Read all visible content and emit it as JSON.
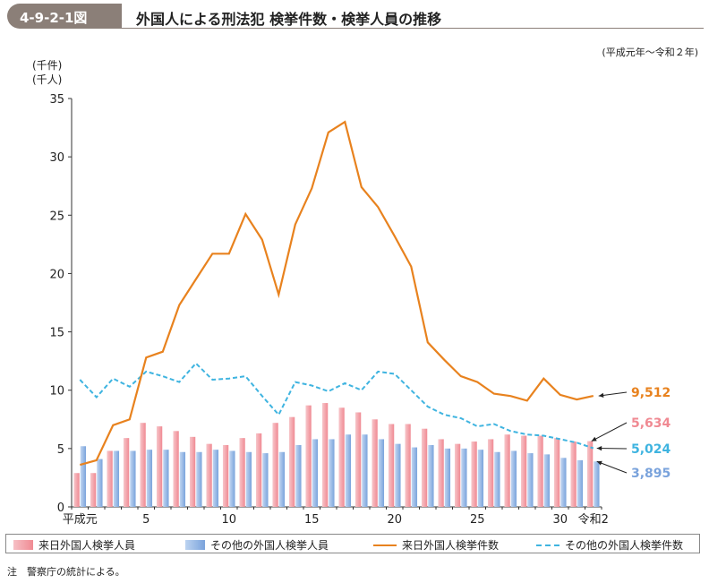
{
  "header": {
    "figure_no": "4-9-2-1図",
    "title": "外国人による刑法犯 検挙件数・検挙人員の推移",
    "period": "(平成元年～令和２年)"
  },
  "units": {
    "line1": "(千件)",
    "line2": "(千人)"
  },
  "note": "注　警察庁の統計による。",
  "colors": {
    "visitor_persons": "#f08a93",
    "other_persons": "#7aa3dc",
    "visitor_cases": "#e8821e",
    "other_cases": "#3fb4e0"
  },
  "chart_data": {
    "type": "bar",
    "title": "外国人による刑法犯 検挙件数・検挙人員の推移",
    "ylim": [
      0,
      35
    ],
    "yticks": [
      0,
      5,
      10,
      15,
      20,
      25,
      30,
      35
    ],
    "xtick_labels": [
      {
        "index": 0,
        "label": "平成元"
      },
      {
        "index": 4,
        "label": "5"
      },
      {
        "index": 9,
        "label": "10"
      },
      {
        "index": 14,
        "label": "15"
      },
      {
        "index": 19,
        "label": "20"
      },
      {
        "index": 24,
        "label": "25"
      },
      {
        "index": 29,
        "label": "30"
      },
      {
        "index": 31,
        "label": "令和2"
      }
    ],
    "categories": [
      "H1",
      "H2",
      "H3",
      "H4",
      "H5",
      "H6",
      "H7",
      "H8",
      "H9",
      "H10",
      "H11",
      "H12",
      "H13",
      "H14",
      "H15",
      "H16",
      "H17",
      "H18",
      "H19",
      "H20",
      "H21",
      "H22",
      "H23",
      "H24",
      "H25",
      "H26",
      "H27",
      "H28",
      "H29",
      "H30",
      "R1",
      "R2"
    ],
    "series": [
      {
        "name": "来日外国人検挙人員",
        "kind": "bar",
        "values": [
          2.9,
          2.9,
          4.8,
          5.9,
          7.2,
          6.9,
          6.5,
          6.0,
          5.4,
          5.3,
          5.9,
          6.3,
          7.2,
          7.7,
          8.7,
          8.9,
          8.5,
          8.1,
          7.5,
          7.1,
          7.1,
          6.7,
          5.8,
          5.4,
          5.6,
          5.8,
          6.2,
          6.1,
          6.1,
          5.9,
          5.6,
          5.634
        ]
      },
      {
        "name": "その他の外国人検挙人員",
        "kind": "bar",
        "values": [
          5.2,
          4.1,
          4.8,
          4.8,
          4.9,
          4.9,
          4.7,
          4.7,
          4.9,
          4.8,
          4.7,
          4.6,
          4.7,
          5.3,
          5.8,
          5.8,
          6.2,
          6.2,
          5.8,
          5.4,
          5.1,
          5.3,
          5.0,
          5.0,
          4.9,
          4.7,
          4.8,
          4.6,
          4.5,
          4.2,
          4.0,
          3.895
        ]
      },
      {
        "name": "来日外国人検挙件数",
        "kind": "line",
        "values": [
          3.6,
          4.0,
          7.0,
          7.5,
          12.8,
          13.3,
          17.3,
          19.5,
          21.7,
          21.7,
          25.1,
          22.9,
          18.2,
          24.2,
          27.3,
          32.1,
          33.0,
          27.4,
          25.7,
          23.2,
          20.6,
          14.1,
          12.6,
          11.2,
          10.7,
          9.7,
          9.5,
          9.1,
          11.0,
          9.6,
          9.2,
          9.512
        ]
      },
      {
        "name": "その他の外国人検挙件数",
        "kind": "line-dashed",
        "values": [
          10.9,
          9.4,
          11.0,
          10.3,
          11.6,
          11.2,
          10.7,
          12.3,
          10.9,
          11.0,
          11.2,
          9.5,
          7.9,
          10.7,
          10.4,
          9.9,
          10.6,
          10.0,
          11.6,
          11.4,
          10.0,
          8.6,
          7.9,
          7.6,
          6.9,
          7.1,
          6.5,
          6.2,
          6.1,
          5.8,
          5.5,
          5.024
        ]
      }
    ],
    "end_labels": [
      {
        "series": "来日外国人検挙件数",
        "text": "9,512"
      },
      {
        "series": "来日外国人検挙人員",
        "text": "5,634"
      },
      {
        "series": "その他の外国人検挙件数",
        "text": "5,024"
      },
      {
        "series": "その他の外国人検挙人員",
        "text": "3,895"
      }
    ]
  }
}
